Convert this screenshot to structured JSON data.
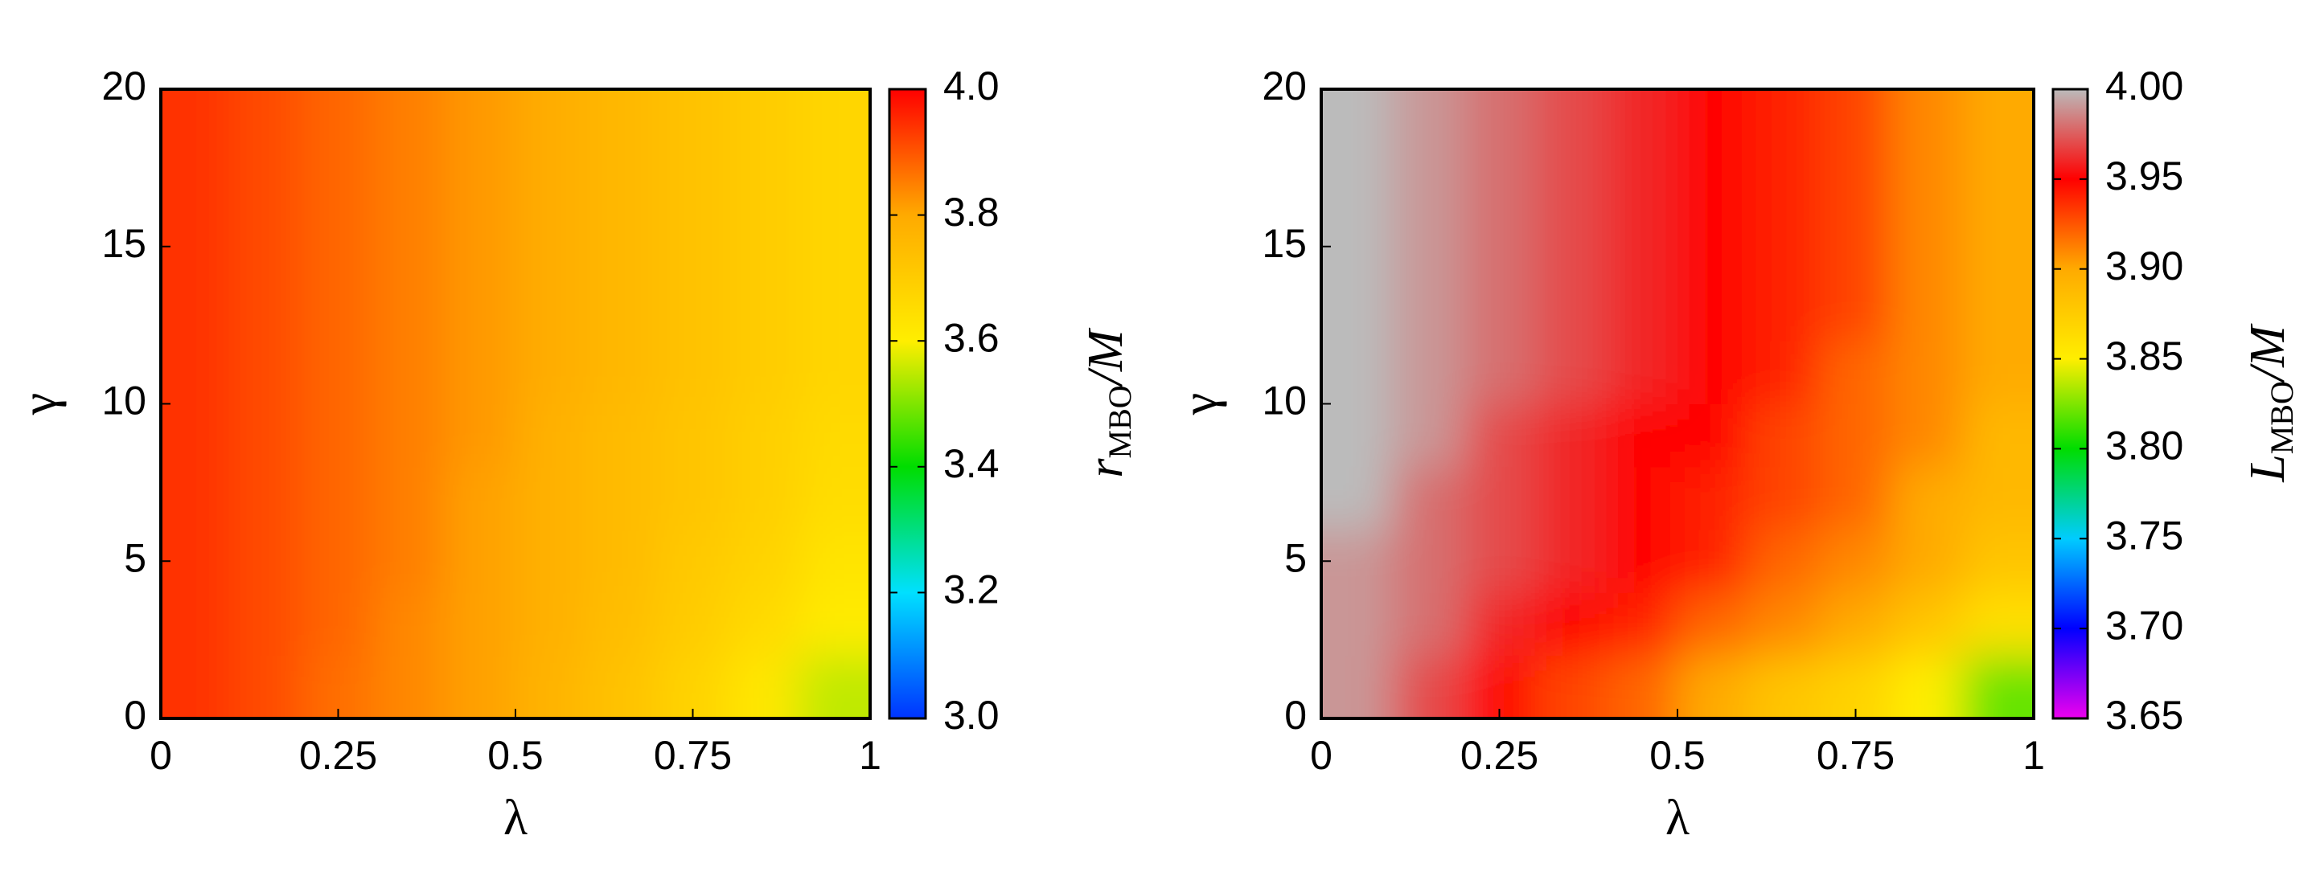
{
  "chart_data": [
    {
      "type": "heatmap",
      "xlabel": "λ",
      "ylabel": "γ",
      "colorbar_label": {
        "main": "r",
        "sub": "MBO",
        "tail": "/M"
      },
      "x": [
        0.05,
        0.15,
        0.25,
        0.35,
        0.45,
        0.55,
        0.65,
        0.75,
        0.85,
        0.95
      ],
      "y": [
        1,
        3,
        5,
        7,
        9,
        11,
        13,
        15,
        17,
        19
      ],
      "z": [
        [
          3.94,
          3.91,
          3.87,
          3.84,
          3.81,
          3.77,
          3.73,
          3.68,
          3.62,
          3.55
        ],
        [
          3.94,
          3.91,
          3.88,
          3.84,
          3.81,
          3.78,
          3.74,
          3.7,
          3.66,
          3.61
        ],
        [
          3.94,
          3.91,
          3.88,
          3.85,
          3.81,
          3.78,
          3.75,
          3.71,
          3.68,
          3.63
        ],
        [
          3.94,
          3.91,
          3.88,
          3.85,
          3.81,
          3.78,
          3.75,
          3.72,
          3.69,
          3.65
        ],
        [
          3.94,
          3.91,
          3.88,
          3.85,
          3.82,
          3.78,
          3.75,
          3.72,
          3.69,
          3.66
        ],
        [
          3.94,
          3.91,
          3.88,
          3.85,
          3.82,
          3.79,
          3.76,
          3.73,
          3.7,
          3.67
        ],
        [
          3.94,
          3.91,
          3.88,
          3.85,
          3.82,
          3.79,
          3.76,
          3.73,
          3.7,
          3.67
        ],
        [
          3.94,
          3.91,
          3.88,
          3.85,
          3.82,
          3.79,
          3.76,
          3.73,
          3.7,
          3.67
        ],
        [
          3.94,
          3.91,
          3.88,
          3.85,
          3.82,
          3.79,
          3.76,
          3.73,
          3.7,
          3.67
        ],
        [
          3.94,
          3.91,
          3.88,
          3.85,
          3.82,
          3.79,
          3.76,
          3.73,
          3.7,
          3.67
        ]
      ],
      "xlim": [
        0,
        1
      ],
      "xticks": [
        0,
        0.25,
        0.5,
        0.75,
        1
      ],
      "ylim": [
        0,
        20
      ],
      "yticks": [
        0,
        5,
        10,
        15,
        20
      ],
      "clim": [
        3,
        4
      ],
      "cticks": [
        {
          "value": 3,
          "label": "3.0"
        },
        3.2,
        3.4,
        3.6,
        3.8,
        {
          "value": 4,
          "label": "4.0"
        }
      ],
      "colors": [
        "#0033ff",
        "#00e0ff",
        "#00dd00",
        "#ffee00",
        "#ffaa00",
        "#ff0000"
      ]
    },
    {
      "type": "heatmap",
      "xlabel": "λ",
      "ylabel": "γ",
      "colorbar_label": {
        "main": "L",
        "sub": "MBO",
        "tail": "/M"
      },
      "x": [
        0.05,
        0.15,
        0.25,
        0.35,
        0.45,
        0.55,
        0.65,
        0.75,
        0.85,
        0.95
      ],
      "y": [
        1,
        3,
        5,
        7,
        9,
        11,
        13,
        15,
        17,
        19
      ],
      "z": [
        [
          3.99,
          3.97,
          3.95,
          3.93,
          3.92,
          3.9,
          3.88,
          3.87,
          3.85,
          3.82
        ],
        [
          3.99,
          3.98,
          3.96,
          3.95,
          3.94,
          3.92,
          3.91,
          3.9,
          3.88,
          3.86
        ],
        [
          3.99,
          3.98,
          3.97,
          3.96,
          3.95,
          3.94,
          3.92,
          3.91,
          3.9,
          3.88
        ],
        [
          4.0,
          3.98,
          3.97,
          3.96,
          3.95,
          3.94,
          3.93,
          3.92,
          3.9,
          3.89
        ],
        [
          4.0,
          3.99,
          3.97,
          3.96,
          3.95,
          3.95,
          3.93,
          3.92,
          3.91,
          3.89
        ],
        [
          4.0,
          3.99,
          3.98,
          3.97,
          3.96,
          3.95,
          3.94,
          3.92,
          3.91,
          3.9
        ],
        [
          4.0,
          3.99,
          3.98,
          3.97,
          3.96,
          3.95,
          3.94,
          3.93,
          3.91,
          3.9
        ],
        [
          4.0,
          3.99,
          3.98,
          3.97,
          3.96,
          3.95,
          3.94,
          3.93,
          3.91,
          3.9
        ],
        [
          4.0,
          3.99,
          3.98,
          3.97,
          3.96,
          3.95,
          3.94,
          3.93,
          3.91,
          3.9
        ],
        [
          4.0,
          3.99,
          3.98,
          3.97,
          3.96,
          3.95,
          3.94,
          3.93,
          3.91,
          3.9
        ]
      ],
      "xlim": [
        0,
        1
      ],
      "xticks": [
        0,
        0.25,
        0.5,
        0.75,
        1
      ],
      "ylim": [
        0,
        20
      ],
      "yticks": [
        0,
        5,
        10,
        15,
        20
      ],
      "clim": [
        3.65,
        4
      ],
      "cticks": [
        3.65,
        {
          "value": 3.7,
          "label": "3.70"
        },
        3.75,
        {
          "value": 3.8,
          "label": "3.80"
        },
        3.85,
        {
          "value": 3.9,
          "label": "3.90"
        },
        3.95,
        {
          "value": 4,
          "label": "4.00"
        }
      ],
      "colors": [
        "#ee00ee",
        "#0000ff",
        "#00ccff",
        "#00dd00",
        "#ffee00",
        "#ffaa00",
        "#ff0000",
        "#bbbbbb"
      ]
    }
  ]
}
